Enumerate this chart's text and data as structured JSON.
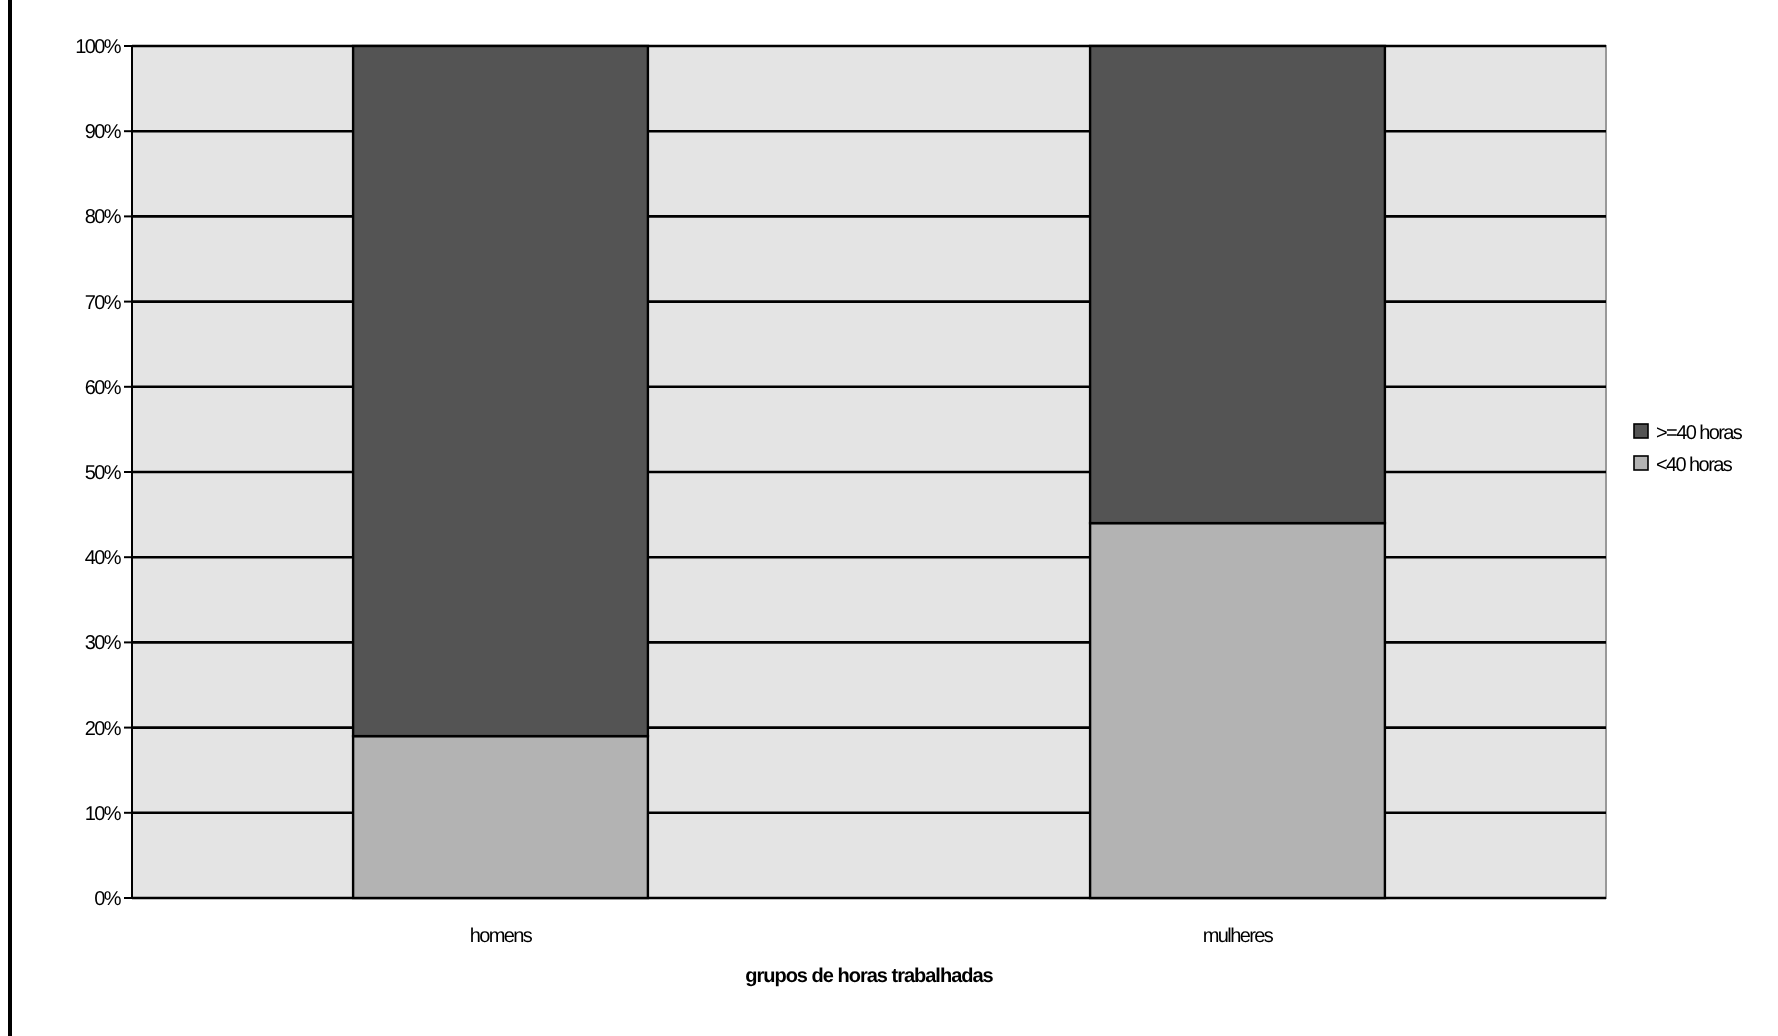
{
  "chart_data": {
    "type": "bar",
    "stacked": true,
    "xlabel": "grupos de horas trabalhadas",
    "categories": [
      "homens",
      "mulheres"
    ],
    "series": [
      {
        "name": "<40 horas",
        "color": "#b3b3b3",
        "values": [
          19,
          44
        ]
      },
      {
        "name": ">=40 horas",
        "color": "#545454",
        "values": [
          81,
          56
        ]
      }
    ],
    "ylim": [
      0,
      100
    ],
    "yticks": [
      {
        "value": 0,
        "label": "0%"
      },
      {
        "value": 10,
        "label": "10%"
      },
      {
        "value": 20,
        "label": "20%"
      },
      {
        "value": 30,
        "label": "30%"
      },
      {
        "value": 40,
        "label": "40%"
      },
      {
        "value": 50,
        "label": "50%"
      },
      {
        "value": 60,
        "label": "60%"
      },
      {
        "value": 70,
        "label": "70%"
      },
      {
        "value": 80,
        "label": "80%"
      },
      {
        "value": 90,
        "label": "90%"
      },
      {
        "value": 100,
        "label": "100%"
      }
    ],
    "grid": "y",
    "legend": "right"
  }
}
